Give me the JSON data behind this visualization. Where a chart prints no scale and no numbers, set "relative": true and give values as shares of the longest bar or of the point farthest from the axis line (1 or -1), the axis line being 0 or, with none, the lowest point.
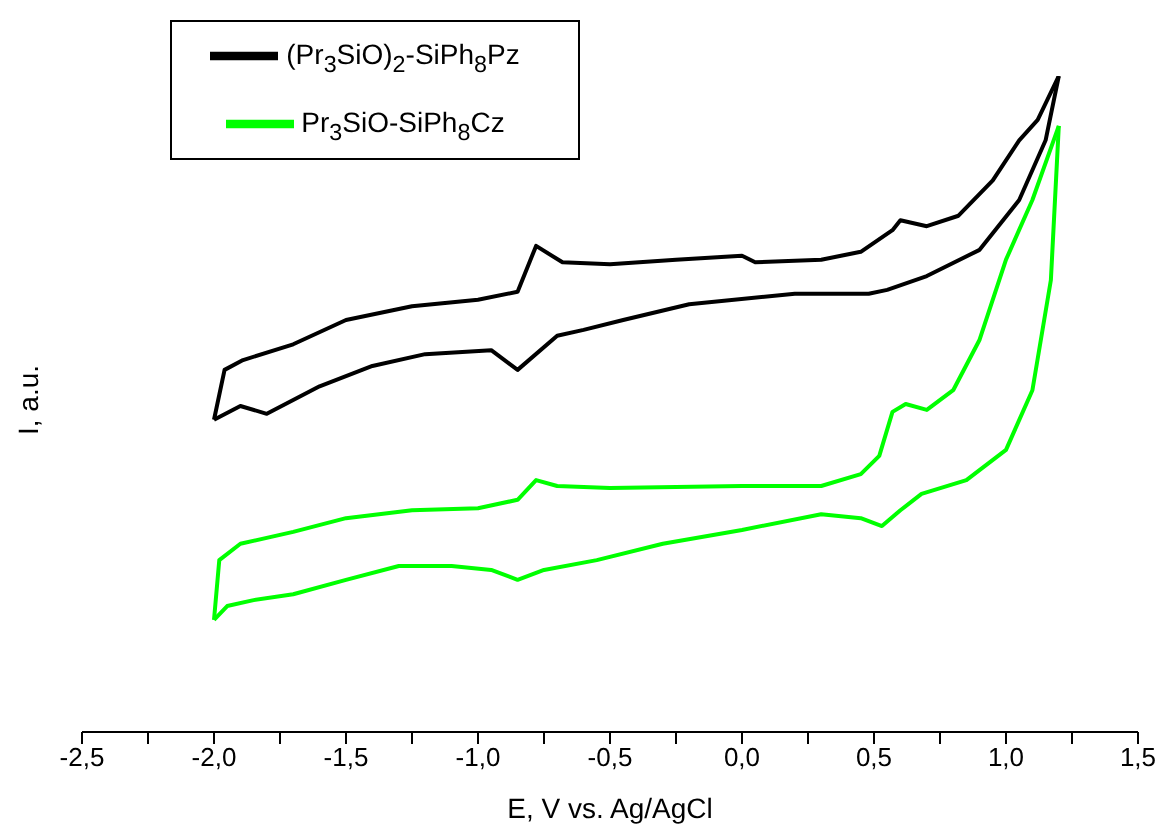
{
  "chart_data": {
    "type": "line",
    "relative": true,
    "xlabel": "E, V vs. Ag/AgCl",
    "ylabel": "I, a.u.",
    "legend": "top left",
    "xlim": [
      -2.5,
      1.5
    ],
    "xticks": [
      {
        "value": -2.5,
        "label": "-2,5"
      },
      {
        "value": -2.25,
        "label": null
      },
      {
        "value": -2,
        "label": "-2,0"
      },
      {
        "value": -1.75,
        "label": null
      },
      {
        "value": -1.5,
        "label": "-1,5"
      },
      {
        "value": -1.25,
        "label": null
      },
      {
        "value": -1,
        "label": "-1,0"
      },
      {
        "value": -0.75,
        "label": null
      },
      {
        "value": -0.5,
        "label": "-0,5"
      },
      {
        "value": -0.25,
        "label": null
      },
      {
        "value": 0,
        "label": "0,0"
      },
      {
        "value": 0.25,
        "label": null
      },
      {
        "value": 0.5,
        "label": "0,5"
      },
      {
        "value": 0.75,
        "label": null
      },
      {
        "value": 1,
        "label": "1,0"
      },
      {
        "value": 1.25,
        "label": null
      },
      {
        "value": 1.5,
        "label": "1,5"
      }
    ],
    "series": [
      {
        "name": "(Pr$_{3}$SiO)$_{2}$-SiPh$_{8}$Pz",
        "color": "#000000",
        "x": [
          -2.0,
          -1.96,
          -1.89,
          -1.7,
          -1.5,
          -1.25,
          -1.0,
          -0.85,
          -0.78,
          -0.68,
          -0.5,
          -0.25,
          0.0,
          0.05,
          0.3,
          0.45,
          0.57,
          0.6,
          0.7,
          0.82,
          0.95,
          1.05,
          1.12,
          1.2
        ],
        "values": [
          0.476,
          0.552,
          0.567,
          0.591,
          0.628,
          0.649,
          0.659,
          0.671,
          0.741,
          0.716,
          0.713,
          0.72,
          0.726,
          0.716,
          0.72,
          0.732,
          0.765,
          0.78,
          0.771,
          0.787,
          0.841,
          0.902,
          0.933,
          1
        ]
      },
      {
        "color": "#000000",
        "x": [
          -2.0,
          -1.9,
          -1.8,
          -1.6,
          -1.4,
          -1.2,
          -0.95,
          -0.85,
          -0.7,
          -0.6,
          -0.45,
          -0.2,
          0.2,
          0.48,
          0.55,
          0.7,
          0.9,
          1.05,
          1.15,
          1.2
        ],
        "values": [
          0.476,
          0.497,
          0.485,
          0.527,
          0.558,
          0.576,
          0.582,
          0.552,
          0.604,
          0.613,
          0.628,
          0.652,
          0.668,
          0.668,
          0.674,
          0.695,
          0.735,
          0.811,
          0.902,
          1
        ]
      },
      {
        "name": "Pr$_{3}$SiO-SiPh$_{8}$Cz",
        "color": "#00ff00",
        "x": [
          -2.0,
          -1.98,
          -1.9,
          -1.7,
          -1.5,
          -1.25,
          -1.0,
          -0.85,
          -0.78,
          -0.7,
          -0.5,
          0.0,
          0.3,
          0.45,
          0.52,
          0.57,
          0.62,
          0.7,
          0.8,
          0.9,
          1.0,
          1.1,
          1.2
        ],
        "values": [
          0.171,
          0.262,
          0.287,
          0.305,
          0.326,
          0.338,
          0.341,
          0.354,
          0.384,
          0.375,
          0.372,
          0.375,
          0.375,
          0.393,
          0.421,
          0.488,
          0.5,
          0.491,
          0.521,
          0.598,
          0.72,
          0.811,
          0.924
        ]
      },
      {
        "color": "#00ff00",
        "x": [
          -2.0,
          -1.95,
          -1.85,
          -1.7,
          -1.5,
          -1.3,
          -1.1,
          -0.95,
          -0.85,
          -0.75,
          -0.55,
          -0.3,
          0.0,
          0.3,
          0.45,
          0.53,
          0.6,
          0.68,
          0.85,
          1.0,
          1.1,
          1.17,
          1.2
        ],
        "values": [
          0.171,
          0.192,
          0.201,
          0.21,
          0.232,
          0.253,
          0.253,
          0.247,
          0.232,
          0.247,
          0.262,
          0.287,
          0.308,
          0.332,
          0.326,
          0.314,
          0.338,
          0.363,
          0.384,
          0.43,
          0.521,
          0.689,
          0.924
        ]
      }
    ]
  }
}
